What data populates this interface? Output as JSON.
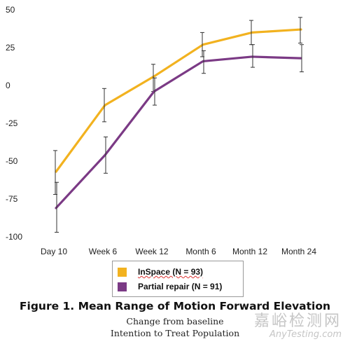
{
  "chart_data": {
    "type": "line",
    "categories": [
      "Day 10",
      "Week 6",
      "Week 12",
      "Month 6",
      "Month 12",
      "Month 24"
    ],
    "ylim": [
      -100,
      50
    ],
    "yticks": [
      50,
      25,
      0,
      -25,
      -50,
      -75,
      -100
    ],
    "ytick_labels": [
      "50",
      "25",
      "0",
      "-25",
      "-50",
      "-75",
      "-100"
    ],
    "grid": false,
    "legend_placement": "bottom-center",
    "series": [
      {
        "name": "InSpace (N = 93)",
        "color": "#F2B21F",
        "values": [
          -57,
          -13,
          6,
          27,
          35,
          37
        ],
        "error_low": [
          -72,
          -24,
          -4,
          19,
          27,
          28
        ],
        "error_high": [
          -43,
          -2,
          14,
          35,
          43,
          45
        ]
      },
      {
        "name": "Partial repair (N = 91)",
        "color": "#7B3A85",
        "values": [
          -81,
          -46,
          -4,
          16,
          19,
          18
        ],
        "error_low": [
          -97,
          -58,
          -13,
          8,
          12,
          9
        ],
        "error_high": [
          -64,
          -34,
          5,
          23,
          27,
          27
        ]
      }
    ],
    "title": "Figure 1. Mean Range of Motion Forward Elevation",
    "subtitle": [
      "Change from baseline",
      "Intention to Treat Population"
    ]
  },
  "legend": {
    "items": [
      "InSpace (N = 93)",
      "Partial repair (N = 91)"
    ],
    "colors": [
      "#F2B21F",
      "#7B3A85"
    ]
  },
  "caption": {
    "title": "Figure 1. Mean Range of Motion Forward Elevation",
    "line1": "Change from baseline",
    "line2": "Intention to Treat Population"
  },
  "watermark": {
    "chinese": "嘉峪检测网",
    "site": "AnyTesting.com"
  }
}
